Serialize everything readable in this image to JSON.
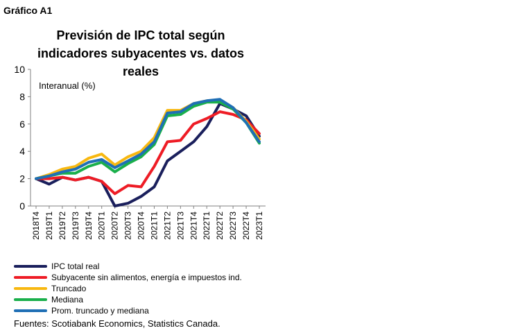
{
  "page_label": "Gráfico A1",
  "chart_data": {
    "type": "line",
    "title": "Previsión de IPC total según indicadores subyacentes vs. datos reales",
    "ylabel": "Interanual (%)",
    "ylim": [
      0,
      10
    ],
    "yticks": [
      0,
      2,
      4,
      6,
      8,
      10
    ],
    "grid": false,
    "legend_position": "bottom-left",
    "x": [
      "2018T4",
      "2019T1",
      "2019T2",
      "2019T3",
      "2019T4",
      "2020T1",
      "2020T2",
      "2020T3",
      "2020T4",
      "2021T1",
      "2021T2",
      "2021T3",
      "2021T4",
      "2022T1",
      "2022T2",
      "2022T3",
      "2022T4",
      "2023T1"
    ],
    "series": [
      {
        "name": "IPC total real",
        "color": "#1a1f5c",
        "values": [
          2.0,
          1.6,
          2.1,
          1.9,
          2.1,
          1.8,
          0.0,
          0.2,
          0.7,
          1.4,
          3.3,
          4.0,
          4.7,
          5.8,
          7.5,
          7.1,
          6.6,
          5.1
        ]
      },
      {
        "name": "Subyacente sin alimentos, energía e impuestos ind.",
        "color": "#ee1c25",
        "values": [
          2.0,
          2.0,
          2.1,
          1.9,
          2.1,
          1.8,
          0.9,
          1.5,
          1.4,
          2.9,
          4.7,
          4.8,
          6.0,
          6.4,
          6.9,
          6.7,
          6.3,
          5.3
        ]
      },
      {
        "name": "Truncado",
        "color": "#f8b810",
        "values": [
          2.0,
          2.3,
          2.7,
          2.9,
          3.5,
          3.8,
          3.0,
          3.6,
          4.0,
          5.0,
          7.0,
          7.0,
          7.5,
          7.7,
          7.7,
          7.2,
          6.2,
          4.9
        ]
      },
      {
        "name": "Mediana",
        "color": "#1aaf4b",
        "values": [
          2.0,
          2.2,
          2.4,
          2.4,
          2.9,
          3.2,
          2.5,
          3.1,
          3.6,
          4.5,
          6.6,
          6.7,
          7.3,
          7.6,
          7.6,
          7.1,
          6.1,
          4.6
        ]
      },
      {
        "name": "Prom. truncado y mediana",
        "color": "#1f6fb5",
        "values": [
          2.0,
          2.2,
          2.5,
          2.7,
          3.2,
          3.4,
          2.8,
          3.3,
          3.8,
          4.7,
          6.8,
          6.9,
          7.5,
          7.7,
          7.8,
          7.2,
          6.1,
          4.7
        ]
      }
    ]
  },
  "source": "Fuentes: Scotiabank Economics, Statistics Canada."
}
